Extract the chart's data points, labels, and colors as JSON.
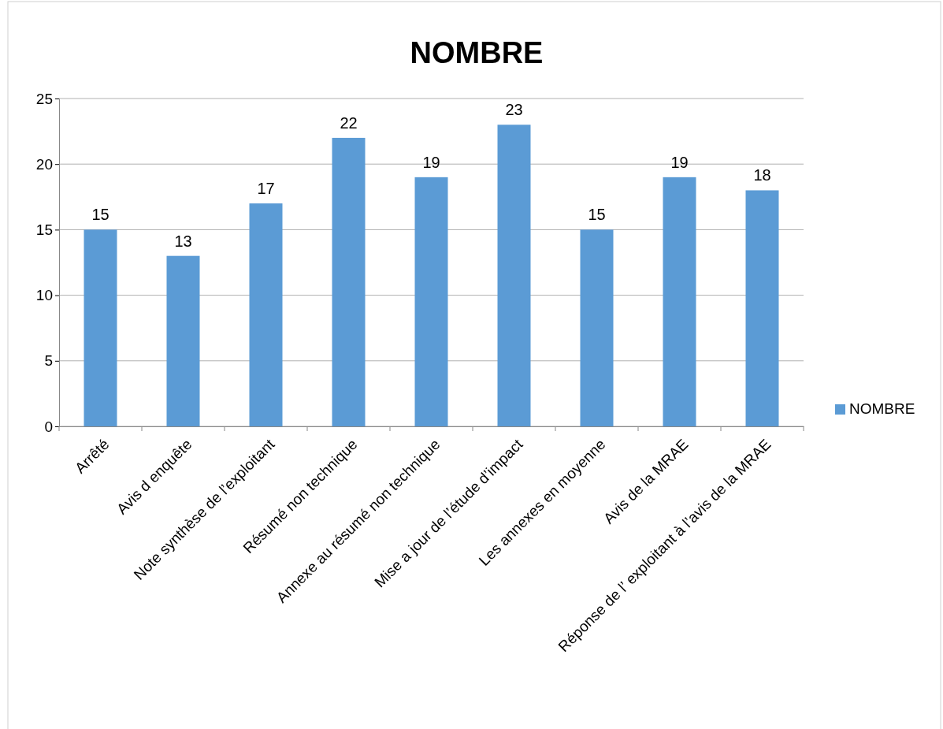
{
  "chart_data": {
    "type": "bar",
    "title": "NOMBRE",
    "categories": [
      "Arrêté",
      "Avis d enquête",
      "Note synthèse de l’exploitant",
      "Résumé non technique",
      "Annexe au résumé non technique",
      "Mise a jour de l’étude d’impact",
      "Les annexes en moyenne",
      "Avis de la MRAE",
      "Réponse de l’ exploitant à l’avis de la MRAE"
    ],
    "series": [
      {
        "name": "NOMBRE",
        "color": "#5b9bd5",
        "values": [
          15,
          13,
          17,
          22,
          19,
          23,
          15,
          19,
          18
        ]
      }
    ],
    "ylim": [
      0,
      25
    ],
    "yticks": [
      0,
      5,
      10,
      15,
      20,
      25
    ],
    "grid": "y",
    "legend": "right",
    "data_labels": true
  }
}
